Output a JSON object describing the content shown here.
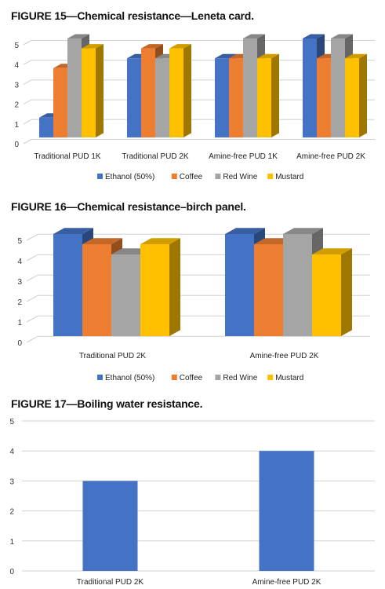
{
  "colors": {
    "ethanol": "#4472C4",
    "coffee": "#ED7D31",
    "red_wine": "#A5A5A5",
    "mustard": "#FFC000",
    "grid": "#d0d0d0"
  },
  "chart_data": [
    {
      "type": "bar",
      "style": "3d-clustered-column",
      "title": "FIGURE 15—Chemical resistance—Leneta card.",
      "categories": [
        "Traditional PUD 1K",
        "Traditional PUD 2K",
        "Amine-free PUD 1K",
        "Amine-free PUD 2K"
      ],
      "series": [
        {
          "name": "Ethanol (50%)",
          "color_key": "ethanol",
          "values": [
            1,
            4,
            4,
            5
          ]
        },
        {
          "name": "Coffee",
          "color_key": "coffee",
          "values": [
            3.5,
            4.5,
            4,
            4
          ]
        },
        {
          "name": "Red Wine",
          "color_key": "red_wine",
          "values": [
            5,
            4,
            5,
            5
          ]
        },
        {
          "name": "Mustard",
          "color_key": "mustard",
          "values": [
            4.5,
            4.5,
            4,
            4
          ]
        }
      ],
      "yticks": [
        "0",
        "1",
        "2",
        "3",
        "4",
        "5"
      ],
      "ylim": [
        0,
        5
      ],
      "grid": true,
      "legend": "bottom"
    },
    {
      "type": "bar",
      "style": "3d-clustered-column",
      "title": "FIGURE 16—Chemical resistance–birch panel.",
      "categories": [
        "Traditional PUD 2K",
        "Amine-free PUD 2K"
      ],
      "series": [
        {
          "name": "Ethanol (50%)",
          "color_key": "ethanol",
          "values": [
            5,
            5
          ]
        },
        {
          "name": "Coffee",
          "color_key": "coffee",
          "values": [
            4.5,
            4.5
          ]
        },
        {
          "name": "Red Wine",
          "color_key": "red_wine",
          "values": [
            4,
            5
          ]
        },
        {
          "name": "Mustard",
          "color_key": "mustard",
          "values": [
            4.5,
            4
          ]
        }
      ],
      "yticks": [
        "0",
        "1",
        "2",
        "3",
        "4",
        "5"
      ],
      "ylim": [
        0,
        5
      ],
      "grid": true,
      "legend": "bottom"
    },
    {
      "type": "bar",
      "style": "flat-column",
      "title": "FIGURE 17—Boiling water resistance.",
      "categories": [
        "Traditional PUD 2K",
        "Amine-free PUD 2K"
      ],
      "series": [
        {
          "color_key": "ethanol",
          "values": [
            3,
            4
          ]
        }
      ],
      "yticks": [
        "0",
        "1",
        "2",
        "3",
        "4",
        "5"
      ],
      "ylim": [
        0,
        5
      ],
      "grid": true,
      "legend": "none"
    }
  ]
}
